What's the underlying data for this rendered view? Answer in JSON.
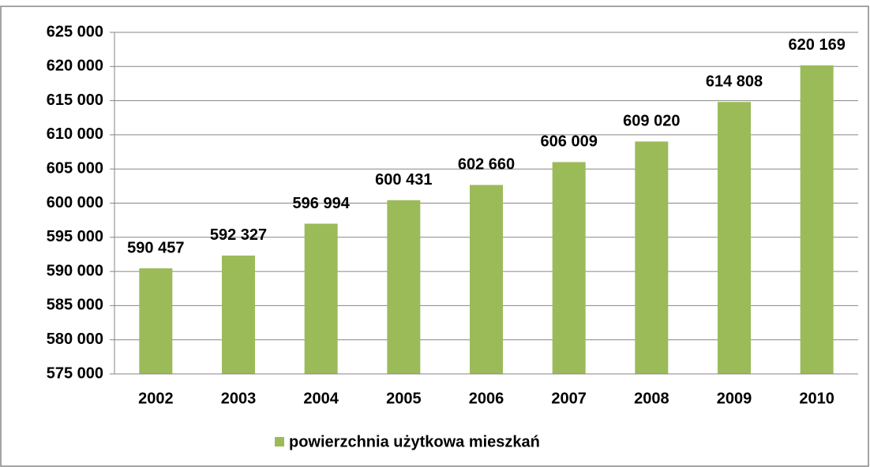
{
  "chart_data": {
    "type": "bar",
    "categories": [
      "2002",
      "2003",
      "2004",
      "2005",
      "2006",
      "2007",
      "2008",
      "2009",
      "2010"
    ],
    "series": [
      {
        "name": "powierzchnia użytkowa mieszkań",
        "color": "#9bbb59",
        "values": [
          590457,
          592327,
          596994,
          600431,
          602660,
          606009,
          609020,
          614808,
          620169
        ],
        "value_labels": [
          "590 457",
          "592 327",
          "596 994",
          "600 431",
          "602 660",
          "606 009",
          "609 020",
          "614 808",
          "620 169"
        ]
      }
    ],
    "ylim": [
      575000,
      625000
    ],
    "yticks": [
      {
        "value": 575000,
        "label": "575 000"
      },
      {
        "value": 580000,
        "label": "580 000"
      },
      {
        "value": 585000,
        "label": "585 000"
      },
      {
        "value": 590000,
        "label": "590 000"
      },
      {
        "value": 595000,
        "label": "595 000"
      },
      {
        "value": 600000,
        "label": "600 000"
      },
      {
        "value": 605000,
        "label": "605 000"
      },
      {
        "value": 610000,
        "label": "610 000"
      },
      {
        "value": 615000,
        "label": "615 000"
      },
      {
        "value": 620000,
        "label": "620 000"
      },
      {
        "value": 625000,
        "label": "625 000"
      }
    ],
    "grid": true,
    "legend": "bottom"
  }
}
